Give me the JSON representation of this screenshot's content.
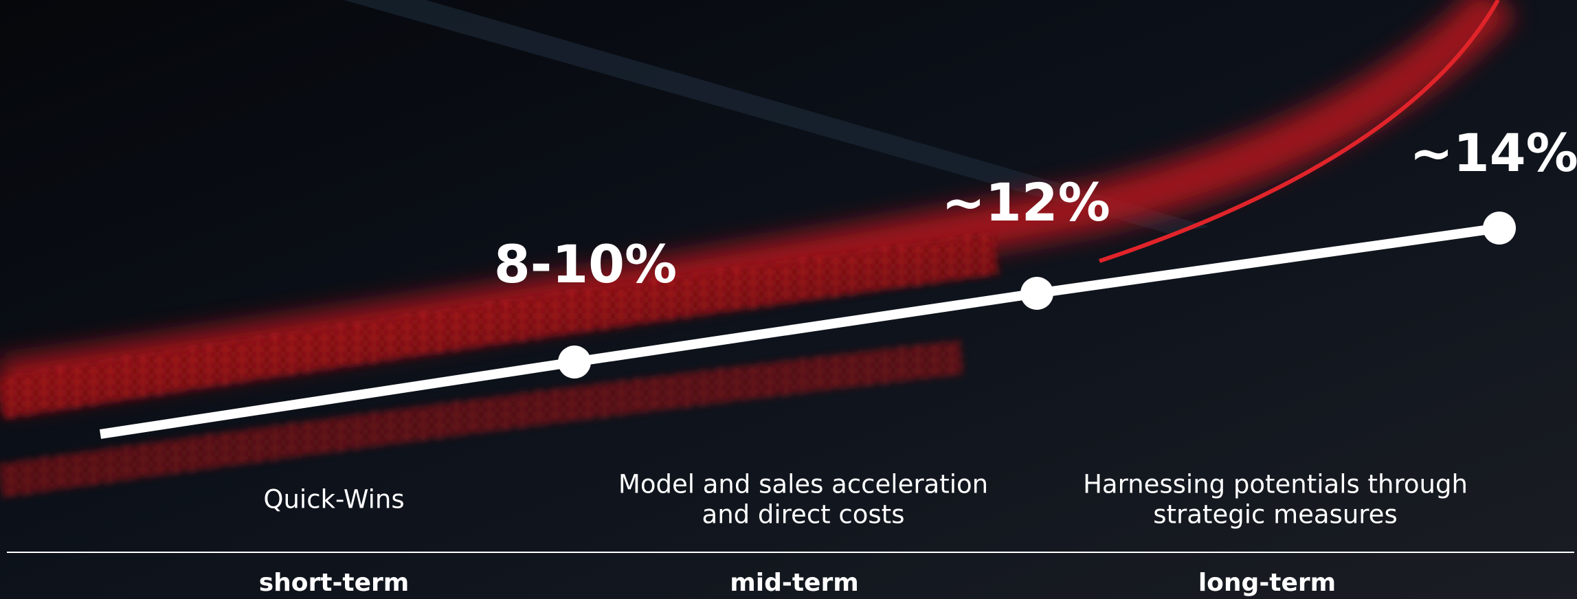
{
  "milestones": [
    {
      "value_label": "8-10%",
      "description": [
        "Quick-Wins"
      ],
      "term": "short-term"
    },
    {
      "value_label": "~12%",
      "description": [
        "Model and sales acceleration",
        "and direct costs"
      ],
      "term": "mid-term"
    },
    {
      "value_label": "~14%",
      "description": [
        "Harnessing potentials through",
        "strategic measures"
      ],
      "term": "long-term"
    }
  ]
}
